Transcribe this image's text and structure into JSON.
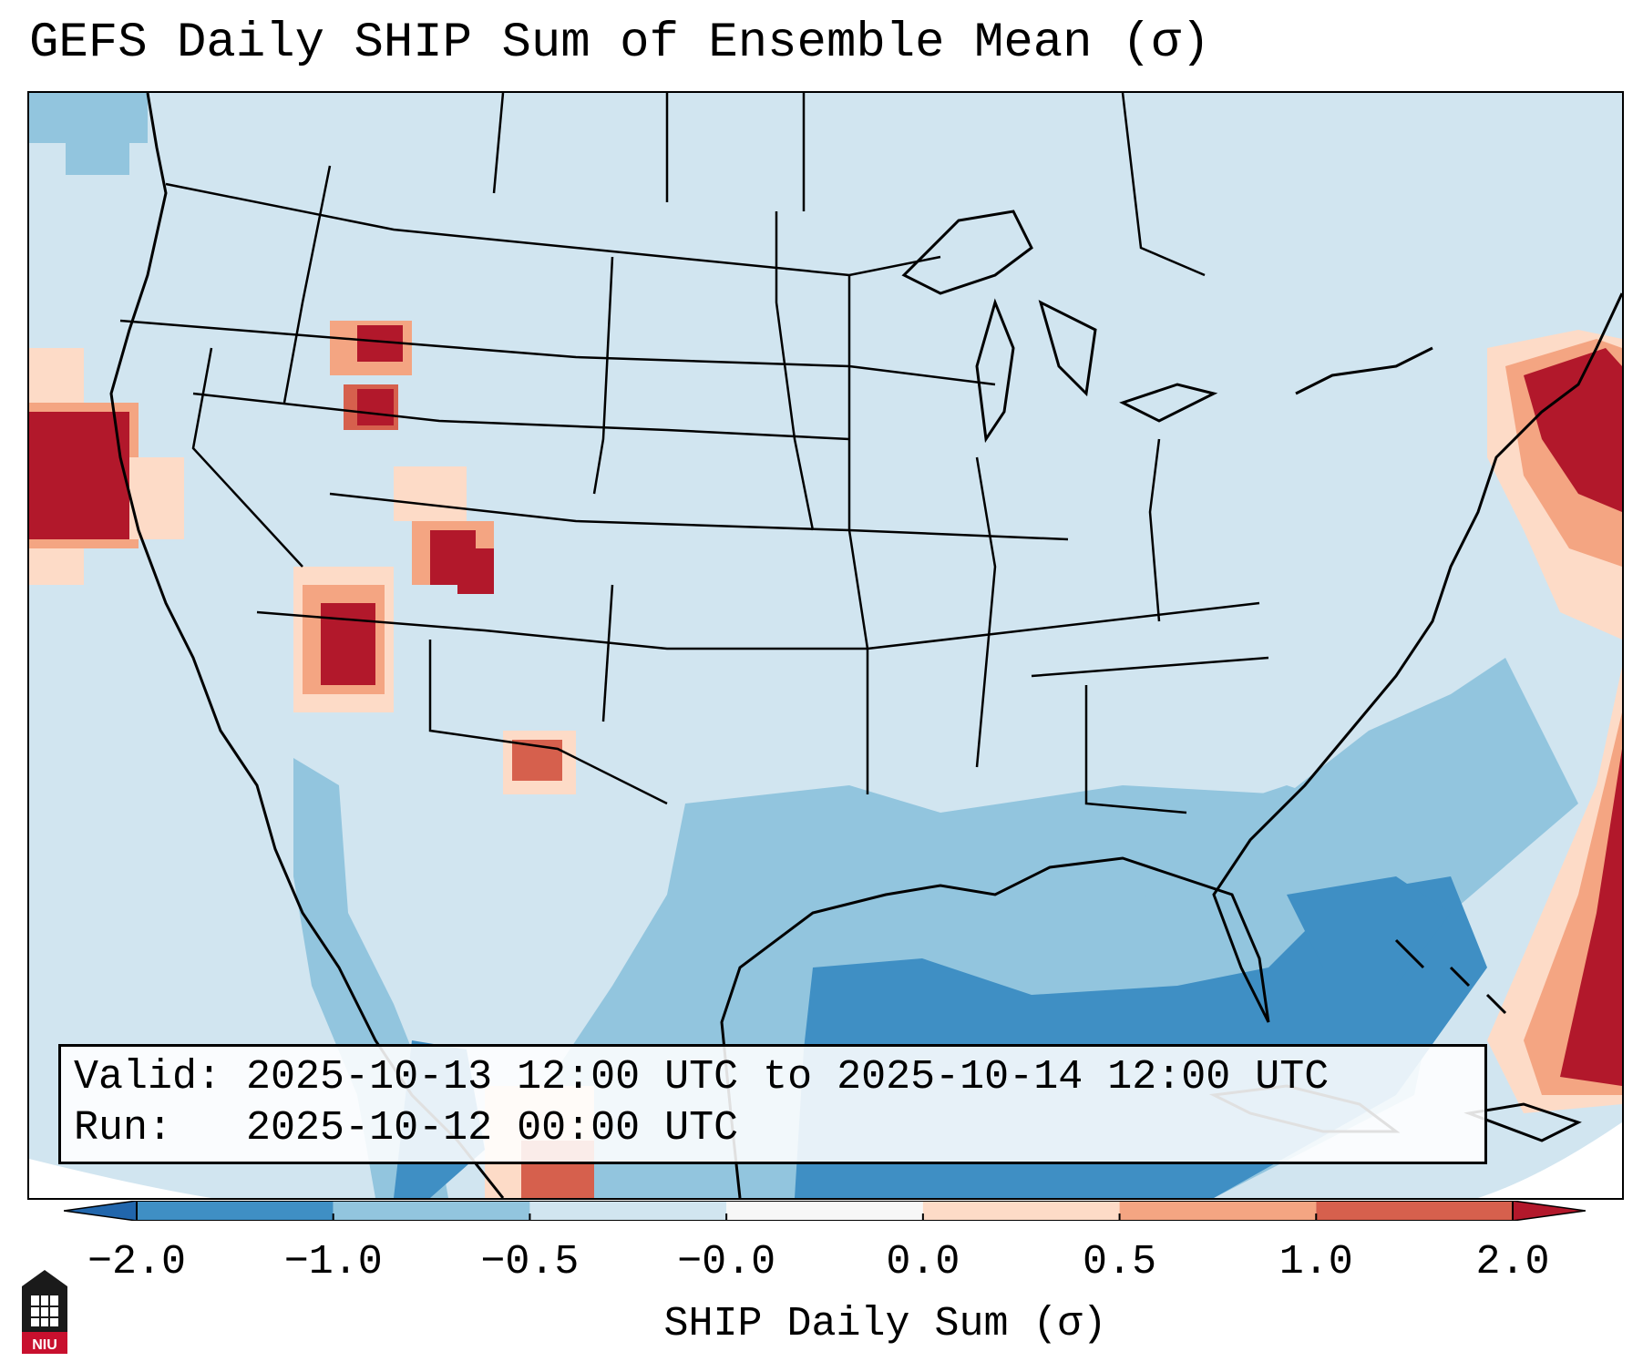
{
  "title": "GEFS Daily SHIP Sum of Ensemble Mean (σ)",
  "info": {
    "valid_label": "Valid:",
    "valid_value": "2025-10-13 12:00 UTC to 2025-10-14 12:00 UTC",
    "run_label": "Run:",
    "run_value": "2025-10-12 00:00 UTC"
  },
  "colorbar": {
    "label": "SHIP Daily Sum (σ)",
    "ticks": [
      "−2.0",
      "−1.0",
      "−0.5",
      "−0.0",
      "0.0",
      "0.5",
      "1.0",
      "2.0"
    ],
    "colors": [
      "#3f8fc4",
      "#92c5de",
      "#d1e5f0",
      "#fddbc7",
      "#f4a582",
      "#d6604d"
    ],
    "under_color": "#2166ac",
    "over_color": "#b2182b"
  },
  "logo": {
    "text": "NIU",
    "icon": "niu-logo-icon"
  }
}
